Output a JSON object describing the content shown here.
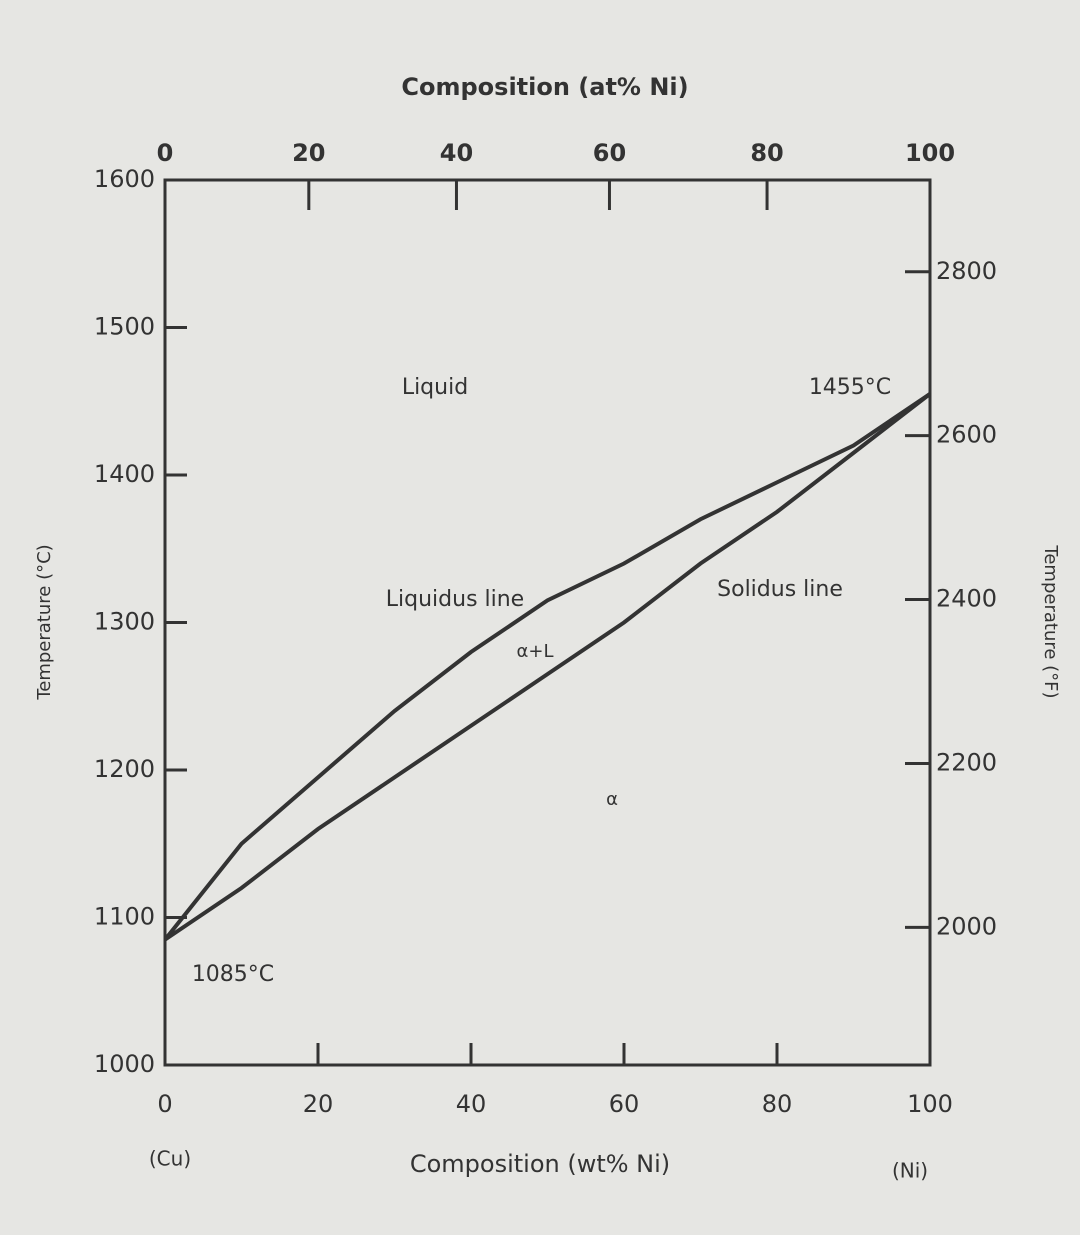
{
  "chart_data": {
    "type": "line",
    "title": "Composition (at% Ni)",
    "xlabel": "Composition (wt% Ni)",
    "ylabel": "Temperature (°C)",
    "y2label": "Temperature (°F)",
    "x": [
      0,
      10,
      20,
      30,
      40,
      50,
      60,
      70,
      80,
      90,
      100
    ],
    "series": [
      {
        "name": "Liquidus line",
        "color": "#333333",
        "values": [
          1085,
          1150,
          1195,
          1240,
          1280,
          1315,
          1340,
          1370,
          1395,
          1420,
          1455
        ]
      },
      {
        "name": "Solidus line",
        "color": "#333333",
        "values": [
          1085,
          1120,
          1160,
          1195,
          1230,
          1265,
          1300,
          1340,
          1375,
          1415,
          1455
        ]
      }
    ],
    "xlim": [
      0,
      100
    ],
    "xticks": [
      0,
      20,
      40,
      60,
      80,
      100
    ],
    "x2ticks": [
      {
        "value": 0,
        "label": "0"
      },
      {
        "value": 18.8,
        "label": "20"
      },
      {
        "value": 38.1,
        "label": "40"
      },
      {
        "value": 58.1,
        "label": "60"
      },
      {
        "value": 78.7,
        "label": "80"
      },
      {
        "value": 100,
        "label": "100"
      }
    ],
    "ylim": [
      1000,
      1600
    ],
    "yticks": [
      1000,
      1100,
      1200,
      1300,
      1400,
      1500,
      1600
    ],
    "y2lim": [
      1832,
      2912
    ],
    "y2ticks": [
      2000,
      2200,
      2400,
      2600,
      2800
    ],
    "endpoint_labels": [
      "(Cu)",
      "(Ni)"
    ],
    "annotations": [
      "Liquid",
      "1455°C",
      "Liquidus line",
      "α+L",
      "Solidus line",
      "α",
      "1085°C"
    ]
  }
}
